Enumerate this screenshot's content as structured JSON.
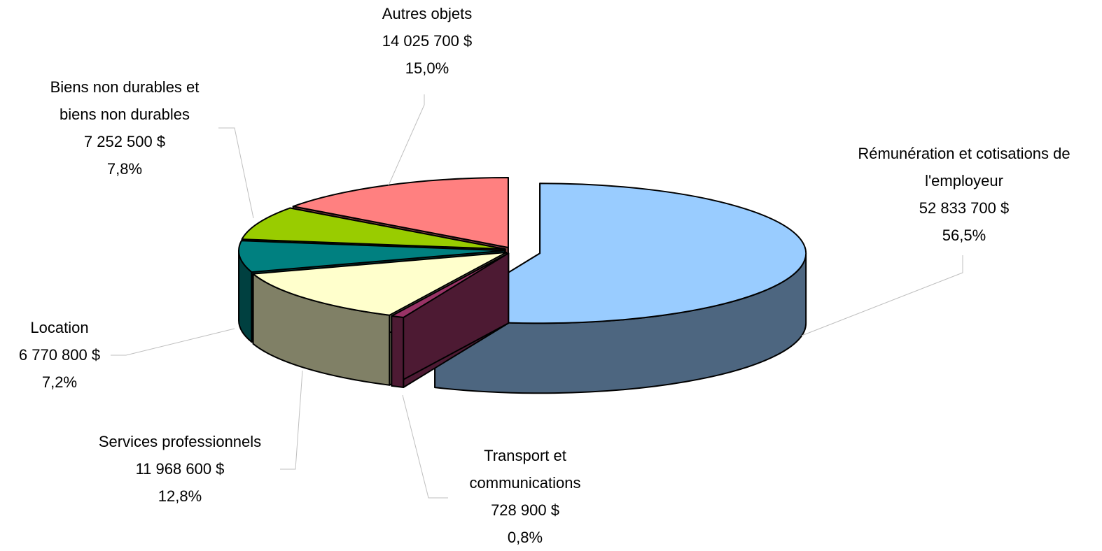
{
  "chart_data": {
    "type": "pie3d",
    "categories": [
      "Rémunération et cotisations de l'employeur",
      "Transport et communications",
      "Services professionnels",
      "Location",
      "Biens non durables et biens non durables",
      "Autres objets"
    ],
    "values": [
      52833700,
      728900,
      11968600,
      6770800,
      7252500,
      14025700
    ],
    "value_labels": [
      "52 833 700 $",
      "728 900 $",
      "11 968 600 $",
      "6 770 800 $",
      "7 252 500 $",
      "14 025 700 $"
    ],
    "percents": [
      56.5,
      0.8,
      12.8,
      7.2,
      7.8,
      15.0
    ],
    "percent_labels": [
      "56,5%",
      "0,8%",
      "12,8%",
      "7,2%",
      "7,8%",
      "15,0%"
    ],
    "colors": [
      "#99ccff",
      "#993366",
      "#ffffcc",
      "#008080",
      "#99cc00",
      "#ff8080"
    ]
  }
}
